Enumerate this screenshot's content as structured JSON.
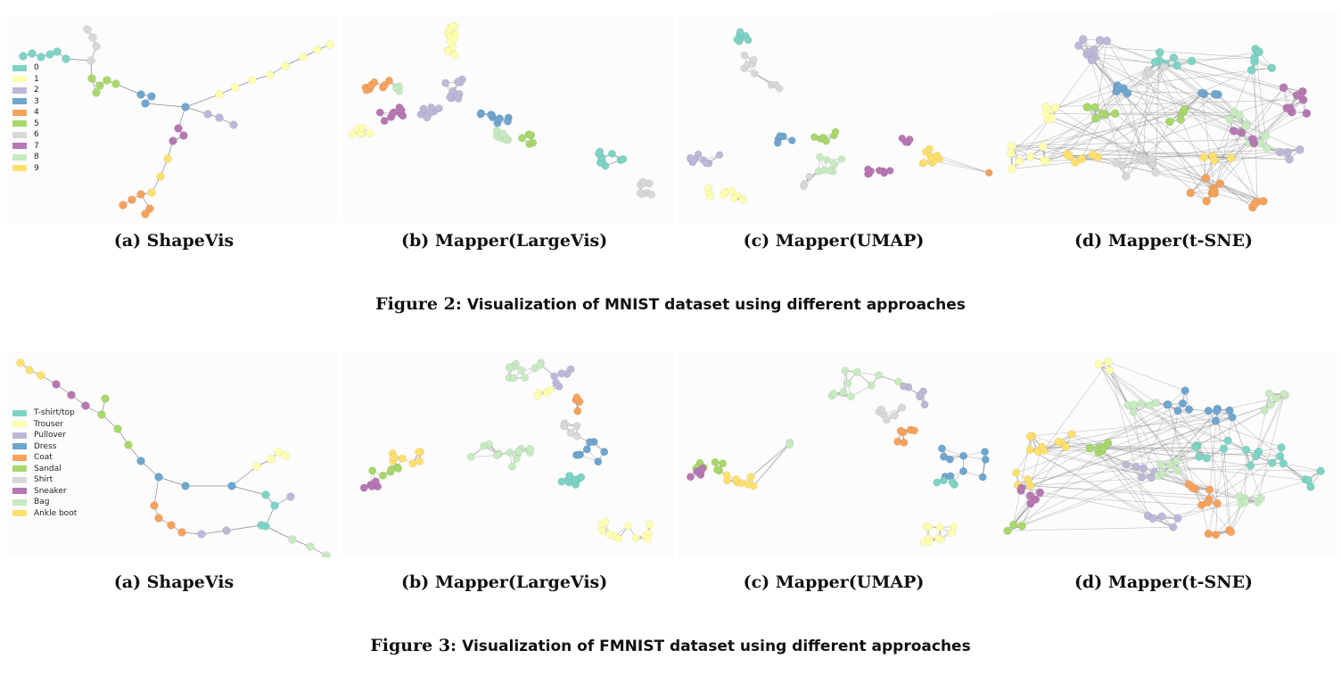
{
  "figures": [
    {
      "label": "Figure 2:",
      "title": "Visualization of MNIST dataset using different approaches",
      "legend": [
        {
          "label": "0",
          "color": "#7dd3c5"
        },
        {
          "label": "1",
          "color": "#ffffb0"
        },
        {
          "label": "2",
          "color": "#bdb8d8"
        },
        {
          "label": "3",
          "color": "#6ea6cf"
        },
        {
          "label": "4",
          "color": "#f7a25c"
        },
        {
          "label": "5",
          "color": "#a8d86a"
        },
        {
          "label": "6",
          "color": "#d8d8d8"
        },
        {
          "label": "7",
          "color": "#b777b3"
        },
        {
          "label": "8",
          "color": "#c7eac1"
        },
        {
          "label": "9",
          "color": "#ffe06e"
        }
      ],
      "subfigures": [
        {
          "caption": "(a) ShapeVis"
        },
        {
          "caption": "(b) Mapper(LargeVis)"
        },
        {
          "caption": "(c) Mapper(UMAP)"
        },
        {
          "caption": "(d) Mapper(t-SNE)"
        }
      ]
    },
    {
      "label": "Figure 3:",
      "title": "Visualization of FMNIST dataset using different approaches",
      "legend": [
        {
          "label": "T-shirt/top",
          "color": "#7dd3c5"
        },
        {
          "label": "Trouser",
          "color": "#ffffb0"
        },
        {
          "label": "Pullover",
          "color": "#bdb8d8"
        },
        {
          "label": "Dress",
          "color": "#6ea6cf"
        },
        {
          "label": "Coat",
          "color": "#f7a25c"
        },
        {
          "label": "Sandal",
          "color": "#a8d86a"
        },
        {
          "label": "Shirt",
          "color": "#d8d8d8"
        },
        {
          "label": "Sneaker",
          "color": "#b777b3"
        },
        {
          "label": "Bag",
          "color": "#c7eac1"
        },
        {
          "label": "Ankle boot",
          "color": "#ffe06e"
        }
      ],
      "subfigures": [
        {
          "caption": "(a) ShapeVis"
        },
        {
          "caption": "(b) Mapper(LargeVis)"
        },
        {
          "caption": "(c) Mapper(UMAP)"
        },
        {
          "caption": "(d) Mapper(t-SNE)"
        }
      ]
    }
  ]
}
